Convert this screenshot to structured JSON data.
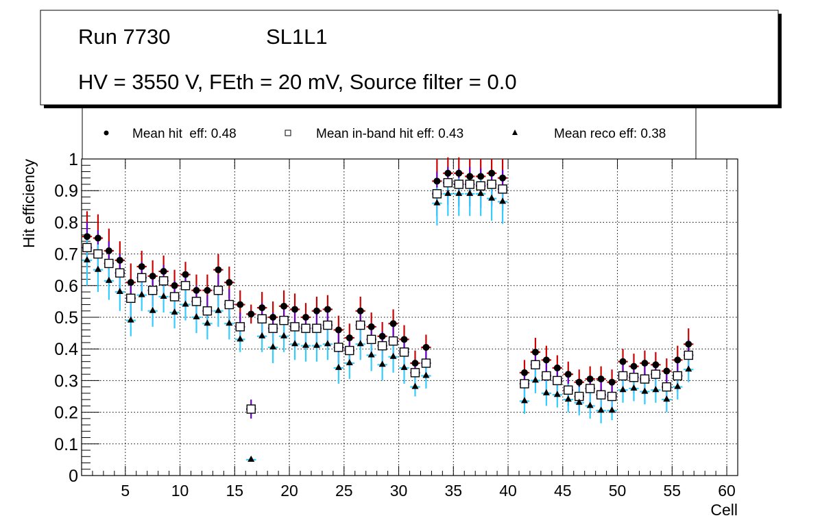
{
  "chart_data": {
    "type": "scatter",
    "title_lines": [
      "Run 7730",
      "SL1L1",
      "HV = 3550 V, FEth = 20 mV, Source filter = 0.0"
    ],
    "xlabel": "Cell",
    "ylabel": "Hit efficiency",
    "xlim": [
      1,
      61
    ],
    "ylim": [
      0,
      1
    ],
    "x_ticks": [
      5,
      10,
      15,
      20,
      25,
      30,
      35,
      40,
      45,
      50,
      55,
      60
    ],
    "y_ticks": [
      0,
      0.1,
      0.2,
      0.3,
      0.4,
      0.5,
      0.6,
      0.7,
      0.8,
      0.9,
      1
    ],
    "y_tick_labels": [
      "0",
      "0.1",
      "0.2",
      "0.3",
      "0.4",
      "0.5",
      "0.6",
      "0.7",
      "0.8",
      "0.9",
      "1"
    ],
    "grid": true,
    "legend": {
      "position": "top",
      "entries": [
        {
          "marker": "circle",
          "label": "Mean hit  eff: 0.48"
        },
        {
          "marker": "open-square",
          "label": "Mean in-band hit eff: 0.43"
        },
        {
          "marker": "triangle",
          "label": "Mean reco eff: 0.38"
        }
      ]
    },
    "colors": {
      "hit": "#cc0000",
      "inband": "#6600cc",
      "reco": "#33ccff"
    },
    "series": [
      {
        "name": "Mean hit eff",
        "marker": "circle",
        "x": [
          1.5,
          2.5,
          3.5,
          4.5,
          5.5,
          6.5,
          7.5,
          8.5,
          9.5,
          10.5,
          11.5,
          12.5,
          13.5,
          14.5,
          15.5,
          16.5,
          17.5,
          18.5,
          19.5,
          20.5,
          21.5,
          22.5,
          23.5,
          24.5,
          25.5,
          26.5,
          27.5,
          28.5,
          29.5,
          30.5,
          31.5,
          32.5,
          33.5,
          34.5,
          35.5,
          36.5,
          37.5,
          38.5,
          39.5,
          41.5,
          42.5,
          43.5,
          44.5,
          45.5,
          46.5,
          47.5,
          48.5,
          49.5,
          50.5,
          51.5,
          52.5,
          53.5,
          54.5,
          55.5,
          56.5
        ],
        "y": [
          0.755,
          0.75,
          0.71,
          0.68,
          0.61,
          0.66,
          0.63,
          0.645,
          0.6,
          0.635,
          0.585,
          0.585,
          0.65,
          0.61,
          0.54,
          0.51,
          0.53,
          0.5,
          0.535,
          0.525,
          0.5,
          0.52,
          0.525,
          0.46,
          0.435,
          0.52,
          0.47,
          0.44,
          0.48,
          0.43,
          0.355,
          0.405,
          0.93,
          0.955,
          0.955,
          0.945,
          0.945,
          0.955,
          0.94,
          0.325,
          0.39,
          0.365,
          0.34,
          0.32,
          0.295,
          0.305,
          0.305,
          0.295,
          0.36,
          0.345,
          0.355,
          0.35,
          0.33,
          0.365,
          0.415
        ],
        "err_lo": [
          0.06,
          0.06,
          0.06,
          0.06,
          0.06,
          0.05,
          0.05,
          0.05,
          0.05,
          0.05,
          0.05,
          0.05,
          0.05,
          0.05,
          0.05,
          0.03,
          0.05,
          0.05,
          0.05,
          0.05,
          0.05,
          0.05,
          0.05,
          0.05,
          0.05,
          0.05,
          0.05,
          0.05,
          0.05,
          0.05,
          0.04,
          0.05,
          0.07,
          0.07,
          0.07,
          0.07,
          0.07,
          0.07,
          0.07,
          0.05,
          0.05,
          0.05,
          0.05,
          0.05,
          0.05,
          0.05,
          0.05,
          0.05,
          0.05,
          0.05,
          0.05,
          0.05,
          0.05,
          0.05,
          0.05
        ],
        "err_hi": [
          0.08,
          0.075,
          0.07,
          0.06,
          0.06,
          0.05,
          0.05,
          0.05,
          0.05,
          0.04,
          0.05,
          0.05,
          0.05,
          0.05,
          0.045,
          0.03,
          0.05,
          0.05,
          0.05,
          0.05,
          0.045,
          0.045,
          0.045,
          0.045,
          0.045,
          0.045,
          0.045,
          0.045,
          0.045,
          0.045,
          0.04,
          0.04,
          0.07,
          0.05,
          0.05,
          0.055,
          0.055,
          0.045,
          0.06,
          0.04,
          0.045,
          0.045,
          0.04,
          0.04,
          0.04,
          0.04,
          0.04,
          0.04,
          0.04,
          0.04,
          0.04,
          0.04,
          0.04,
          0.045,
          0.05
        ]
      },
      {
        "name": "Mean in-band hit eff",
        "marker": "open-square",
        "x": [
          1.5,
          2.5,
          3.5,
          4.5,
          5.5,
          6.5,
          7.5,
          8.5,
          9.5,
          10.5,
          11.5,
          12.5,
          13.5,
          14.5,
          15.5,
          16.5,
          17.5,
          18.5,
          19.5,
          20.5,
          21.5,
          22.5,
          23.5,
          24.5,
          25.5,
          26.5,
          27.5,
          28.5,
          29.5,
          30.5,
          31.5,
          32.5,
          33.5,
          34.5,
          35.5,
          36.5,
          37.5,
          38.5,
          39.5,
          41.5,
          42.5,
          43.5,
          44.5,
          45.5,
          46.5,
          47.5,
          48.5,
          49.5,
          50.5,
          51.5,
          52.5,
          53.5,
          54.5,
          55.5,
          56.5
        ],
        "y": [
          0.72,
          0.7,
          0.67,
          0.64,
          0.56,
          0.625,
          0.585,
          0.615,
          0.565,
          0.6,
          0.55,
          0.52,
          0.585,
          0.54,
          0.47,
          0.21,
          0.495,
          0.465,
          0.49,
          0.47,
          0.465,
          0.465,
          0.475,
          0.405,
          0.395,
          0.475,
          0.43,
          0.41,
          0.425,
          0.39,
          0.325,
          0.355,
          0.89,
          0.925,
          0.92,
          0.92,
          0.915,
          0.92,
          0.905,
          0.29,
          0.35,
          0.315,
          0.3,
          0.27,
          0.25,
          0.275,
          0.255,
          0.25,
          0.315,
          0.31,
          0.305,
          0.32,
          0.28,
          0.315,
          0.38
        ],
        "err_lo": [
          0.06,
          0.06,
          0.06,
          0.06,
          0.06,
          0.05,
          0.05,
          0.05,
          0.05,
          0.05,
          0.05,
          0.05,
          0.05,
          0.05,
          0.05,
          0.03,
          0.05,
          0.05,
          0.05,
          0.05,
          0.05,
          0.05,
          0.05,
          0.05,
          0.05,
          0.05,
          0.05,
          0.05,
          0.05,
          0.05,
          0.04,
          0.05,
          0.07,
          0.07,
          0.07,
          0.07,
          0.07,
          0.07,
          0.07,
          0.05,
          0.05,
          0.05,
          0.05,
          0.05,
          0.05,
          0.05,
          0.05,
          0.05,
          0.05,
          0.05,
          0.05,
          0.05,
          0.05,
          0.05,
          0.05
        ],
        "err_hi": [
          0.08,
          0.075,
          0.07,
          0.06,
          0.06,
          0.05,
          0.05,
          0.05,
          0.05,
          0.04,
          0.05,
          0.05,
          0.05,
          0.05,
          0.045,
          0.03,
          0.05,
          0.05,
          0.05,
          0.05,
          0.045,
          0.045,
          0.045,
          0.045,
          0.045,
          0.045,
          0.045,
          0.045,
          0.045,
          0.045,
          0.04,
          0.04,
          0.07,
          0.05,
          0.05,
          0.055,
          0.055,
          0.045,
          0.06,
          0.04,
          0.045,
          0.045,
          0.04,
          0.04,
          0.04,
          0.04,
          0.04,
          0.04,
          0.04,
          0.04,
          0.04,
          0.04,
          0.04,
          0.045,
          0.05
        ]
      },
      {
        "name": "Mean reco eff",
        "marker": "triangle",
        "x": [
          1.5,
          2.5,
          3.5,
          4.5,
          5.5,
          6.5,
          7.5,
          8.5,
          9.5,
          10.5,
          11.5,
          12.5,
          13.5,
          14.5,
          15.5,
          16.5,
          17.5,
          18.5,
          19.5,
          20.5,
          21.5,
          22.5,
          23.5,
          24.5,
          25.5,
          26.5,
          27.5,
          28.5,
          29.5,
          30.5,
          31.5,
          32.5,
          33.5,
          34.5,
          35.5,
          36.5,
          37.5,
          38.5,
          39.5,
          41.5,
          42.5,
          43.5,
          44.5,
          45.5,
          46.5,
          47.5,
          48.5,
          49.5,
          50.5,
          51.5,
          52.5,
          53.5,
          54.5,
          55.5,
          56.5
        ],
        "y": [
          0.68,
          0.65,
          0.615,
          0.58,
          0.49,
          0.57,
          0.52,
          0.565,
          0.515,
          0.54,
          0.5,
          0.48,
          0.52,
          0.48,
          0.43,
          0.05,
          0.44,
          0.405,
          0.44,
          0.415,
          0.41,
          0.41,
          0.415,
          0.34,
          0.355,
          0.415,
          0.38,
          0.35,
          0.375,
          0.34,
          0.28,
          0.315,
          0.86,
          0.89,
          0.89,
          0.89,
          0.89,
          0.875,
          0.865,
          0.235,
          0.3,
          0.26,
          0.255,
          0.24,
          0.23,
          0.22,
          0.205,
          0.205,
          0.27,
          0.275,
          0.265,
          0.27,
          0.24,
          0.28,
          0.335
        ],
        "err_lo": [
          0.08,
          0.07,
          0.06,
          0.06,
          0.05,
          0.05,
          0.05,
          0.05,
          0.05,
          0.05,
          0.05,
          0.05,
          0.05,
          0.05,
          0.04,
          0.005,
          0.05,
          0.05,
          0.05,
          0.05,
          0.05,
          0.05,
          0.05,
          0.05,
          0.05,
          0.05,
          0.05,
          0.05,
          0.05,
          0.05,
          0.03,
          0.04,
          0.07,
          0.07,
          0.07,
          0.07,
          0.07,
          0.07,
          0.07,
          0.04,
          0.04,
          0.04,
          0.04,
          0.04,
          0.04,
          0.04,
          0.04,
          0.03,
          0.04,
          0.04,
          0.04,
          0.04,
          0.04,
          0.04,
          0.04
        ],
        "err_hi": [
          0.07,
          0.08,
          0.07,
          0.06,
          0.06,
          0.05,
          0.05,
          0.05,
          0.05,
          0.05,
          0.05,
          0.05,
          0.05,
          0.05,
          0.05,
          0.005,
          0.05,
          0.05,
          0.05,
          0.05,
          0.05,
          0.05,
          0.05,
          0.05,
          0.05,
          0.05,
          0.05,
          0.05,
          0.05,
          0.05,
          0.04,
          0.04,
          0.05,
          0.05,
          0.05,
          0.05,
          0.05,
          0.05,
          0.05,
          0.05,
          0.05,
          0.05,
          0.05,
          0.05,
          0.05,
          0.05,
          0.05,
          0.05,
          0.05,
          0.05,
          0.05,
          0.05,
          0.05,
          0.05,
          0.05
        ]
      }
    ]
  }
}
